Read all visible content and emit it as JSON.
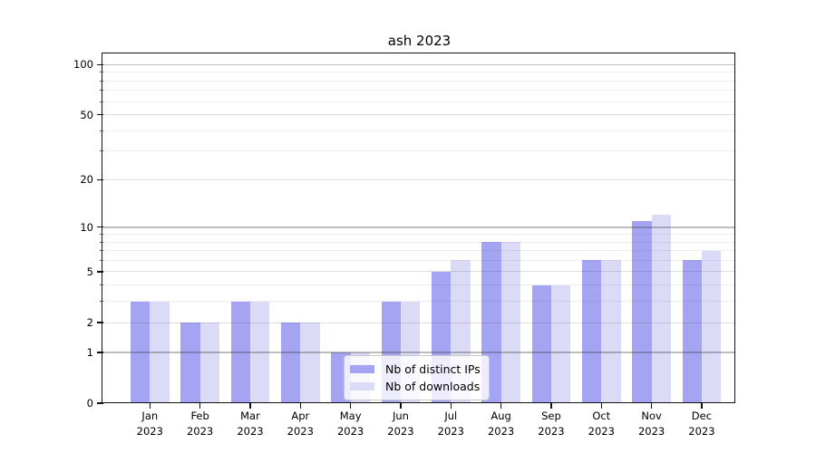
{
  "chart_data": {
    "type": "bar",
    "title": "ash 2023",
    "categories": [
      "Jan",
      "Feb",
      "Mar",
      "Apr",
      "May",
      "Jun",
      "Jul",
      "Aug",
      "Sep",
      "Oct",
      "Nov",
      "Dec"
    ],
    "category_year": "2023",
    "series": [
      {
        "name": "Nb of distinct IPs",
        "color": "#a4a4f3",
        "values": [
          3,
          2,
          3,
          2,
          1,
          3,
          5,
          8,
          4,
          6,
          11,
          6
        ]
      },
      {
        "name": "Nb of downloads",
        "color": "#dbdbf8",
        "values": [
          3,
          2,
          3,
          2,
          1,
          3,
          6,
          8,
          4,
          6,
          12,
          7
        ]
      }
    ],
    "xlabel": "",
    "ylabel": "",
    "yscale": "log1p",
    "ylim": [
      0,
      114
    ],
    "yticks": [
      0,
      1,
      2,
      5,
      10,
      20,
      50,
      100
    ],
    "yticks_minor": [
      3,
      4,
      6,
      7,
      8,
      9,
      30,
      40,
      60,
      70,
      80,
      90
    ],
    "grid": "on",
    "legend_position": "lower-center"
  }
}
